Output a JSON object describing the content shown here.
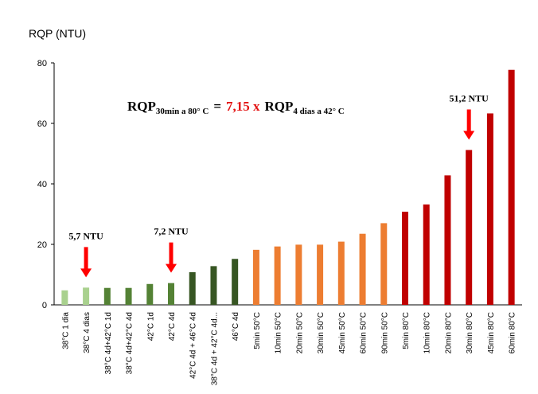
{
  "chart_data": {
    "type": "bar",
    "ylabel": "RQP (NTU)",
    "ylim": [
      0,
      80
    ],
    "yticks": [
      0,
      20,
      40,
      60,
      80
    ],
    "grid": false,
    "categories": [
      "38°C 1 dia",
      "38°C 4 dias",
      "38°C 4d+42°C 1d",
      "38°C 4d+42°C 4d",
      "42°C 1d",
      "42°C 4d",
      "42°C 4d + 46°C 4d",
      "38°C 4d + 42°C 4d...",
      "46°C 4d",
      "5min 50°C",
      "10min 50°C",
      "20min 50°C",
      "30min 50°C",
      "45min 50°C",
      "60min 50°C",
      "90min 50°C",
      "5min 80°C",
      "10min 80°C",
      "20min 80°C",
      "30min 80°C",
      "45min 80°C",
      "60min 80°C"
    ],
    "values": [
      4.8,
      5.7,
      5.6,
      5.6,
      6.9,
      7.2,
      10.8,
      12.8,
      15.2,
      18.2,
      19.3,
      19.9,
      19.9,
      20.9,
      23.5,
      27.0,
      30.8,
      33.2,
      42.8,
      51.2,
      63.3,
      77.7
    ],
    "colors": [
      "#a9d18e",
      "#a9d18e",
      "#548235",
      "#548235",
      "#548235",
      "#548235",
      "#375623",
      "#375623",
      "#375623",
      "#ed7d31",
      "#ed7d31",
      "#ed7d31",
      "#ed7d31",
      "#ed7d31",
      "#ed7d31",
      "#ed7d31",
      "#c00000",
      "#c00000",
      "#c00000",
      "#c00000",
      "#c00000",
      "#c00000"
    ],
    "annotations": [
      {
        "label": "5,7 NTU",
        "category_index": 1,
        "arrow_color": "#ff0000"
      },
      {
        "label": "7,2 NTU",
        "category_index": 5,
        "arrow_color": "#ff0000"
      },
      {
        "label": "51,2 NTU",
        "category_index": 19,
        "arrow_color": "#ff0000"
      }
    ],
    "formula": {
      "lhs": "RQP",
      "lhs_sub": "30min a 80° C",
      "equals": "=",
      "factor": "7,15 x",
      "rhs": "RQP",
      "rhs_sub": "4 dias a 42° C"
    }
  }
}
